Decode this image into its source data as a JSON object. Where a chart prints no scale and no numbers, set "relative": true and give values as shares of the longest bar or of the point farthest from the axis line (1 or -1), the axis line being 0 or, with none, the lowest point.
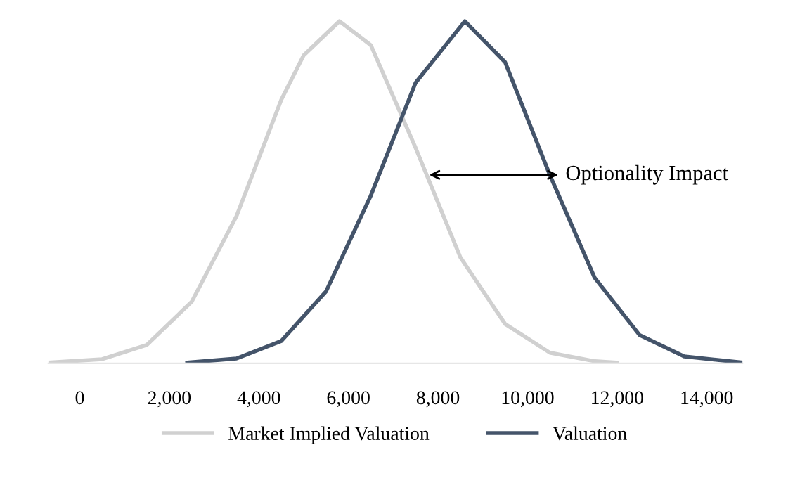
{
  "chart_data": {
    "type": "line",
    "relative": true,
    "xlim": [
      -700,
      14800
    ],
    "xticks": [
      {
        "value": 0,
        "label": "0"
      },
      {
        "value": 2000,
        "label": "2,000"
      },
      {
        "value": 4000,
        "label": "4,000"
      },
      {
        "value": 6000,
        "label": "6,000"
      },
      {
        "value": 8000,
        "label": "8,000"
      },
      {
        "value": 10000,
        "label": "10,000"
      },
      {
        "value": 12000,
        "label": "12,000"
      },
      {
        "value": 14000,
        "label": "14,000"
      }
    ],
    "series": [
      {
        "name": "Market Implied Valuation",
        "color": "#d0d0d0",
        "x": [
          -700,
          500,
          1500,
          2500,
          3500,
          4500,
          5000,
          5800,
          6500,
          7500,
          8500,
          9500,
          10500,
          11500,
          12000
        ],
        "values": [
          0.002,
          0.012,
          0.054,
          0.18,
          0.43,
          0.77,
          0.9,
          1,
          0.93,
          0.63,
          0.31,
          0.115,
          0.031,
          0.006,
          0.002
        ]
      },
      {
        "name": "Valuation",
        "color": "#44546a",
        "x": [
          2400,
          3500,
          4500,
          5500,
          6500,
          7500,
          8600,
          9500,
          10500,
          11500,
          12500,
          13500,
          14800
        ],
        "values": [
          0.002,
          0.014,
          0.065,
          0.21,
          0.49,
          0.82,
          1,
          0.88,
          0.55,
          0.25,
          0.083,
          0.02,
          0.002
        ]
      }
    ],
    "annotations": [
      "Optionality Impact"
    ],
    "grid": false,
    "legend": "bottom",
    "line_style": "solid",
    "marker": "none"
  }
}
